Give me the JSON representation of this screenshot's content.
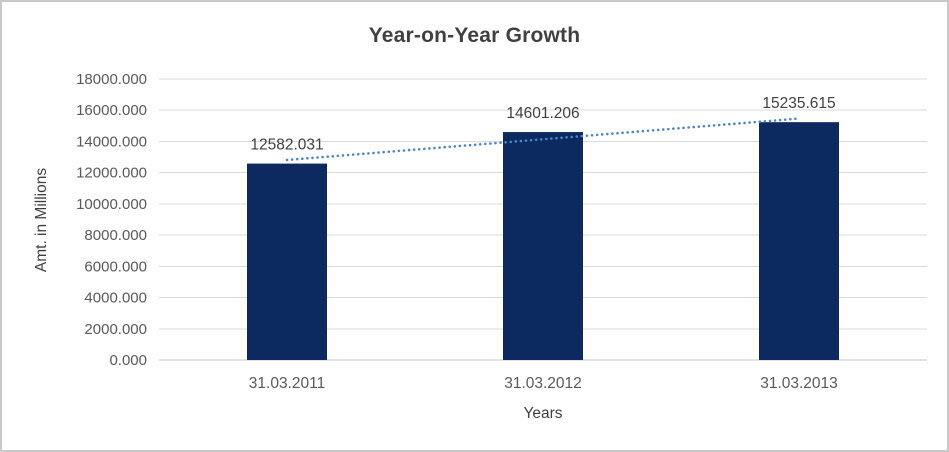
{
  "chart_data": {
    "type": "bar",
    "title": "Year-on-Year Growth",
    "xlabel": "Years",
    "ylabel": "Amt. in Millions",
    "categories": [
      "31.03.2011",
      "31.03.2012",
      "31.03.2013"
    ],
    "values": [
      12582.031,
      14601.206,
      15235.615
    ],
    "data_labels": [
      "12582.031",
      "14601.206",
      "15235.615"
    ],
    "ylim": [
      0,
      18000
    ],
    "ytick_step": 2000,
    "ytick_values": [
      0,
      2000,
      4000,
      6000,
      8000,
      10000,
      12000,
      14000,
      16000,
      18000
    ],
    "ytick_labels": [
      "0.000",
      "2000.000",
      "4000.000",
      "6000.000",
      "8000.000",
      "10000.000",
      "12000.000",
      "14000.000",
      "16000.000",
      "18000.000"
    ],
    "grid": true,
    "legend": "none",
    "trendline": {
      "type": "linear",
      "style": "dotted"
    },
    "colors": {
      "bar": "#0c2a60",
      "trendline": "#4a86c8",
      "gridline": "#d9d9d9",
      "axis_line": "#c6c6c6",
      "title_text": "#404040",
      "data_label_text": "#404040",
      "axis_text": "#595959",
      "frame_border": "#c9c9c9",
      "background": "#ffffff"
    }
  }
}
